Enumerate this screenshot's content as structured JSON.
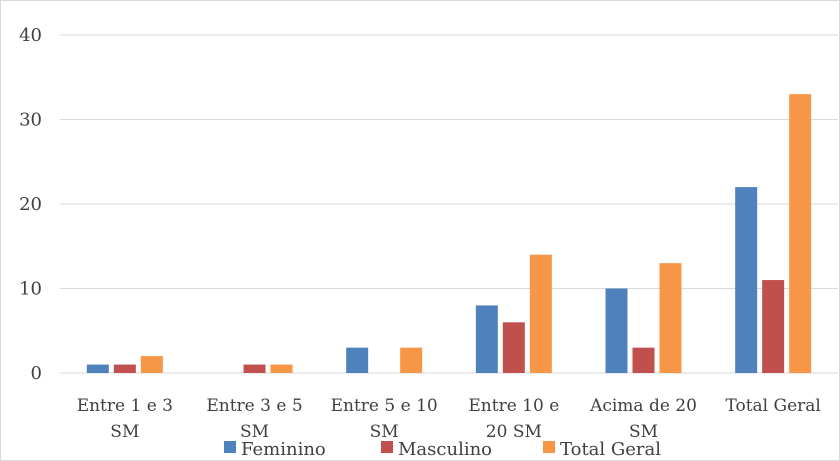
{
  "chart_data": {
    "type": "bar",
    "categories": [
      [
        "Entre 1 e 3",
        "SM"
      ],
      [
        "Entre 3 e 5",
        "SM"
      ],
      [
        "Entre 5 e 10",
        "SM"
      ],
      [
        "Entre 10 e",
        "20 SM"
      ],
      [
        "Acima de 20",
        "SM"
      ],
      [
        "Total Geral"
      ]
    ],
    "series": [
      {
        "name": "Feminino",
        "color": "#4f81bd",
        "values": [
          1,
          0,
          3,
          8,
          10,
          22
        ]
      },
      {
        "name": "Masculino",
        "color": "#c0504d",
        "values": [
          1,
          1,
          0,
          6,
          3,
          11
        ]
      },
      {
        "name": "Total Geral",
        "color": "#f79646",
        "values": [
          2,
          1,
          3,
          14,
          13,
          33
        ]
      }
    ],
    "ylim": [
      0,
      40
    ],
    "yticks": [
      "0",
      "10",
      "20",
      "30",
      "40"
    ],
    "grid": true,
    "legend": "bottom"
  }
}
